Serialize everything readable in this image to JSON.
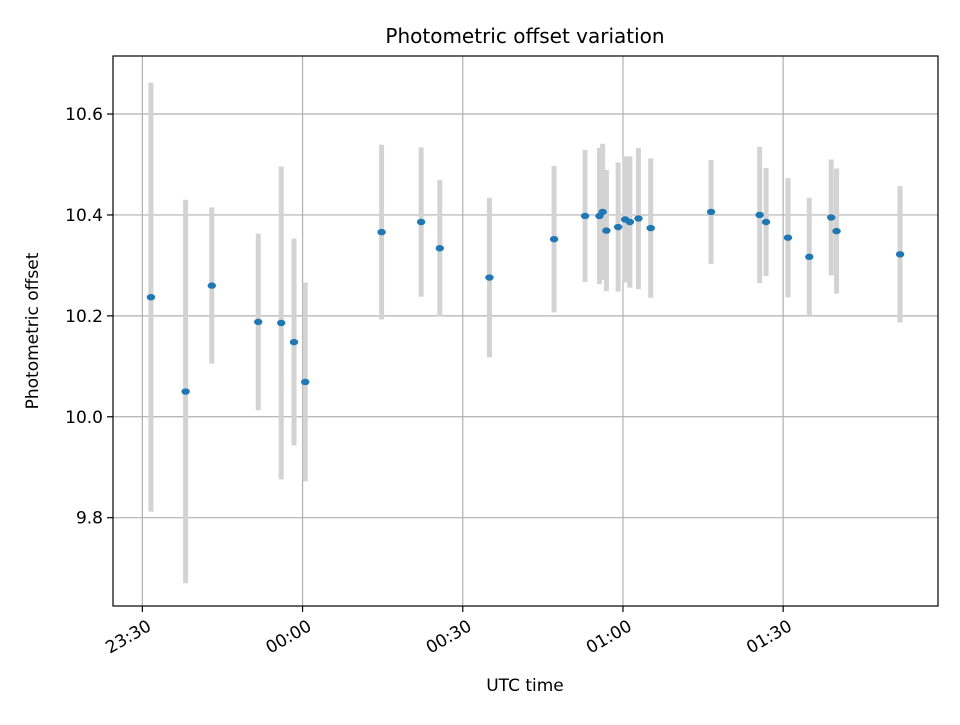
{
  "chart_data": {
    "type": "scatter",
    "title": "Photometric offset variation",
    "xlabel": "UTC time",
    "ylabel": "Photometric offset",
    "x_tick_labels": [
      "23:30",
      "00:00",
      "00:30",
      "01:00",
      "01:30"
    ],
    "x_ticks_minutes": [
      -30,
      0,
      30,
      60,
      90
    ],
    "y_ticks": [
      9.8,
      10.0,
      10.2,
      10.4,
      10.6
    ],
    "y_tick_labels": [
      "9.8",
      "10.0",
      "10.2",
      "10.4",
      "10.6"
    ],
    "xlim_minutes": [
      -35.5,
      119.0
    ],
    "ylim": [
      9.625,
      10.715
    ],
    "grid": true,
    "colors": {
      "points": "#1f77b4",
      "error_bars": "#d3d3d3",
      "grid": "#b0b0b0"
    },
    "points": [
      {
        "x": "23:31.6",
        "y": 10.237,
        "yerr": 0.425
      },
      {
        "x": "23:38.1",
        "y": 10.05,
        "yerr": 0.38
      },
      {
        "x": "23:43.0",
        "y": 10.26,
        "yerr": 0.155
      },
      {
        "x": "23:51.7",
        "y": 10.188,
        "yerr": 0.175
      },
      {
        "x": "23:56.0",
        "y": 10.186,
        "yerr": 0.31
      },
      {
        "x": "23:58.4",
        "y": 10.148,
        "yerr": 0.205
      },
      {
        "x": "00:00.5",
        "y": 10.069,
        "yerr": 0.197
      },
      {
        "x": "00:14.8",
        "y": 10.366,
        "yerr": 0.173
      },
      {
        "x": "00:22.2",
        "y": 10.386,
        "yerr": 0.148
      },
      {
        "x": "00:25.7",
        "y": 10.334,
        "yerr": 0.135
      },
      {
        "x": "00:35.0",
        "y": 10.276,
        "yerr": 0.158
      },
      {
        "x": "00:47.1",
        "y": 10.352,
        "yerr": 0.145
      },
      {
        "x": "00:52.9",
        "y": 10.398,
        "yerr": 0.131
      },
      {
        "x": "00:55.6",
        "y": 10.398,
        "yerr": 0.135
      },
      {
        "x": "00:56.2",
        "y": 10.406,
        "yerr": 0.135
      },
      {
        "x": "00:56.9",
        "y": 10.369,
        "yerr": 0.12
      },
      {
        "x": "00:59.1",
        "y": 10.376,
        "yerr": 0.128
      },
      {
        "x": "01:00.4",
        "y": 10.391,
        "yerr": 0.125
      },
      {
        "x": "01:01.3",
        "y": 10.386,
        "yerr": 0.13
      },
      {
        "x": "01:02.9",
        "y": 10.393,
        "yerr": 0.14
      },
      {
        "x": "01:05.2",
        "y": 10.374,
        "yerr": 0.138
      },
      {
        "x": "01:16.5",
        "y": 10.406,
        "yerr": 0.103
      },
      {
        "x": "01:25.6",
        "y": 10.4,
        "yerr": 0.135
      },
      {
        "x": "01:26.8",
        "y": 10.386,
        "yerr": 0.107
      },
      {
        "x": "01:30.9",
        "y": 10.355,
        "yerr": 0.118
      },
      {
        "x": "01:34.9",
        "y": 10.317,
        "yerr": 0.117
      },
      {
        "x": "01:39.0",
        "y": 10.395,
        "yerr": 0.115
      },
      {
        "x": "01:40.0",
        "y": 10.368,
        "yerr": 0.124
      },
      {
        "x": "01:51.9",
        "y": 10.322,
        "yerr": 0.135
      }
    ]
  }
}
